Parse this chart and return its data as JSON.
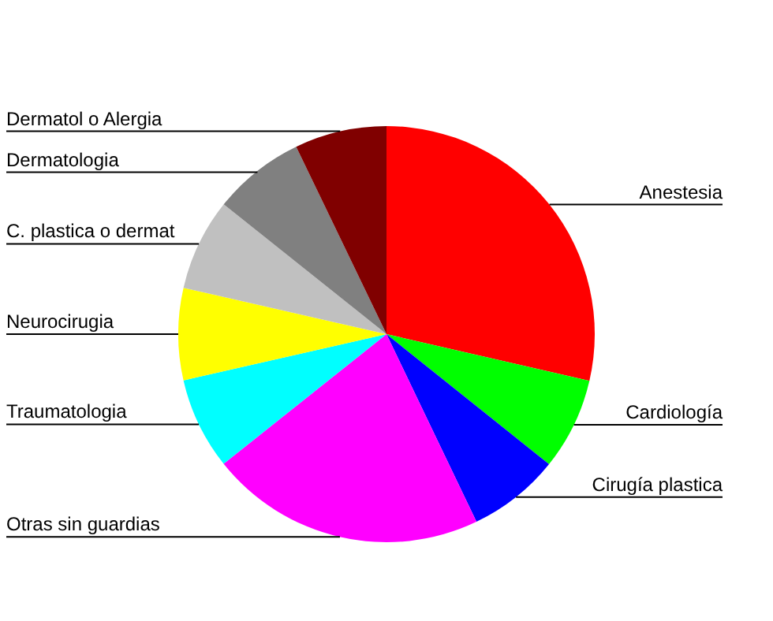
{
  "chart_data": {
    "type": "pie",
    "categories": [
      "Anestesia",
      "Cardiología",
      "Cirugía plastica",
      "Otras sin guardias",
      "Traumatologia",
      "Neurocirugia",
      "C. plastica o dermat",
      "Dermatologia",
      "Dermatol o Alergia"
    ],
    "values": [
      28.6,
      7.14,
      7.14,
      21.4,
      7.14,
      7.14,
      7.14,
      7.14,
      7.14
    ],
    "colors": [
      "#ff0000",
      "#00ff00",
      "#0000ff",
      "#ff00ff",
      "#00ffff",
      "#ffff00",
      "#c0c0c0",
      "#808080",
      "#800000"
    ]
  }
}
